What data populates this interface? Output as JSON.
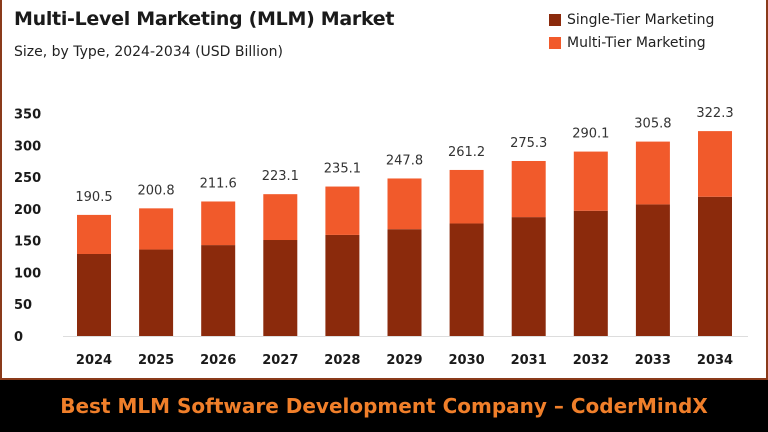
{
  "chart_data": {
    "type": "bar",
    "stacked": true,
    "title": "Multi-Level Marketing (MLM) Market",
    "subtitle": "Size, by Type, 2024-2034 (USD Billion)",
    "categories": [
      "2024",
      "2025",
      "2026",
      "2027",
      "2028",
      "2029",
      "2030",
      "2031",
      "2032",
      "2033",
      "2034"
    ],
    "totals": [
      190.5,
      200.8,
      211.6,
      223.1,
      235.1,
      247.8,
      261.2,
      275.3,
      290.1,
      305.8,
      322.3
    ],
    "series": [
      {
        "name": "Single-Tier Marketing",
        "color": "#8b2a0c",
        "values": [
          129,
          136,
          143,
          151,
          159,
          168,
          177,
          187,
          197,
          207,
          219
        ]
      },
      {
        "name": "Multi-Tier Marketing",
        "color": "#f15a2b",
        "values": [
          61.5,
          64.8,
          68.6,
          72.1,
          76.1,
          79.8,
          84.2,
          88.3,
          93.1,
          98.8,
          103.3
        ]
      }
    ],
    "ylim": [
      0,
      350
    ],
    "yticks": [
      0,
      50,
      100,
      150,
      200,
      250,
      300,
      350
    ],
    "grid": false,
    "legend": "top-right"
  },
  "banner": "Best MLM Software Development Company – CoderMindX"
}
